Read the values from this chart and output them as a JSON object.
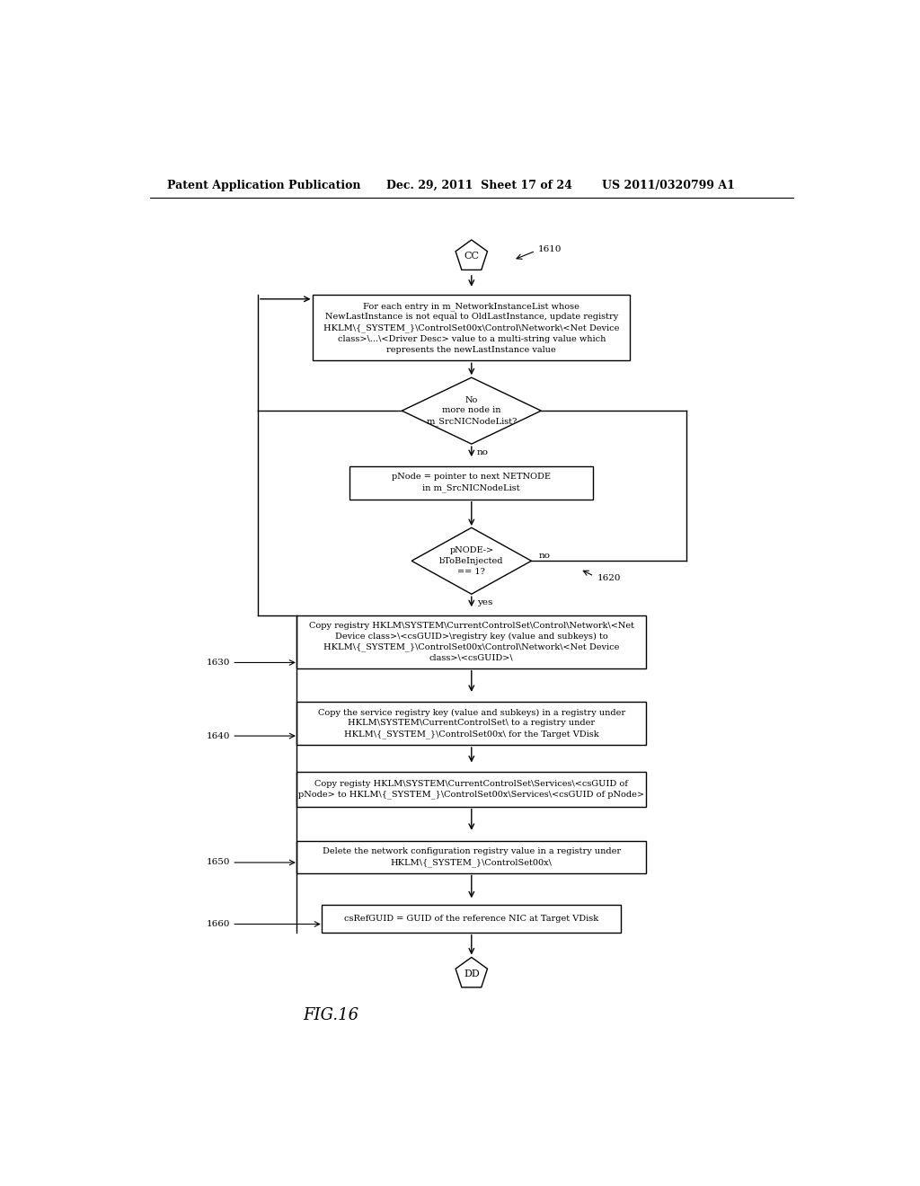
{
  "header_left": "Patent Application Publication",
  "header_mid": "Dec. 29, 2011  Sheet 17 of 24",
  "header_right": "US 2011/0320799 A1",
  "fig_label": "FIG.16",
  "terminal_start": "CC",
  "terminal_end": "DD",
  "label_1610": "1610",
  "label_1620": "1620",
  "label_1630": "1630",
  "label_1640": "1640",
  "label_1650": "1650",
  "label_1660": "1660",
  "box1_text": "For each entry in m_NetworkInstanceList whose\nNewLastInstance is not equal to OldLastInstance, update registry\nHKLM\\{_SYSTEM_}\\ControlSet00x\\Control\\Network\\<Net Device\nclass>\\...\\<Driver Desc> value to a multi-string value which\nrepresents the newLastInstance value",
  "diamond1_text": "No\nmore node in\nm_SrcNICNodeList?",
  "box2_text": "pNode = pointer to next NETNODE\nin m_SrcNICNodeList",
  "diamond2_text": "pNODE->\nbToBeInjected\n== 1?",
  "box3_text": "Copy registry HKLM\\SYSTEM\\CurrentControlSet\\Control\\Network\\<Net\nDevice class>\\<csGUID>\\registry key (value and subkeys) to\nHKLM\\{_SYSTEM_}\\ControlSet00x\\Control\\Network\\<Net Device\nclass>\\<csGUID>\\",
  "box4_text": "Copy the service registry key (value and subkeys) in a registry under\nHKLM\\SYSTEM\\CurrentControlSet\\ to a registry under\nHKLM\\{_SYSTEM_}\\ControlSet00x\\ for the Target VDisk",
  "box5_text": "Copy registy HKLM\\SYSTEM\\CurrentControlSet\\Services\\<csGUID of\npNode> to HKLM\\{_SYSTEM_}\\ControlSet00x\\Services\\<csGUID of pNode>",
  "box6_text": "Delete the network configuration registry value in a registry under\nHKLM\\{_SYSTEM_}\\ControlSet00x\\",
  "box7_text": "csRefGUID = GUID of the reference NIC at Target VDisk",
  "label_no1": "no",
  "label_no2": "no",
  "label_yes": "yes",
  "bg_color": "#ffffff",
  "line_color": "#000000",
  "text_color": "#000000",
  "fontsize_header": 9,
  "fontsize_body": 7.5
}
